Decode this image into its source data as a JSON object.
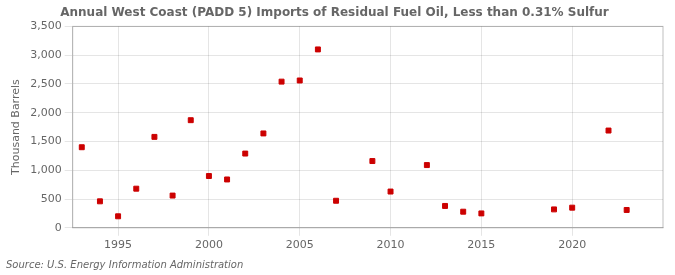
{
  "chart_data": {
    "type": "scatter",
    "title": "Annual West Coast (PADD 5) Imports of Residual Fuel Oil, Less than 0.31% Sulfur",
    "ylabel": "Thousand Barrels",
    "annotations": [
      "Source: U.S. Energy Information Administration"
    ],
    "x": [
      1993,
      1994,
      1995,
      1996,
      1997,
      1998,
      1999,
      2000,
      2001,
      2002,
      2003,
      2004,
      2005,
      2006,
      2007,
      2009,
      2010,
      2012,
      2013,
      2014,
      2015,
      2019,
      2020,
      2022,
      2023
    ],
    "values": [
      1400,
      460,
      200,
      680,
      1580,
      560,
      1870,
      900,
      840,
      1290,
      1640,
      2540,
      2560,
      3100,
      470,
      1160,
      630,
      1090,
      380,
      280,
      250,
      320,
      350,
      1690,
      310
    ],
    "color": "#cc0000",
    "marker": "square",
    "xlim": [
      1992.5,
      2025
    ],
    "xticks": [
      1995,
      2000,
      2005,
      2010,
      2015,
      2020
    ],
    "ylim": [
      0,
      3500
    ],
    "yticks": [
      0,
      500,
      {
        "value": 1000,
        "label": "1,000"
      },
      {
        "value": 1500,
        "label": "1,500"
      },
      {
        "value": 2000,
        "label": "2,000"
      },
      {
        "value": 2500,
        "label": "2,500"
      },
      {
        "value": 3000,
        "label": "3,000"
      },
      {
        "value": 3500,
        "label": "3,500"
      }
    ],
    "grid": true
  }
}
